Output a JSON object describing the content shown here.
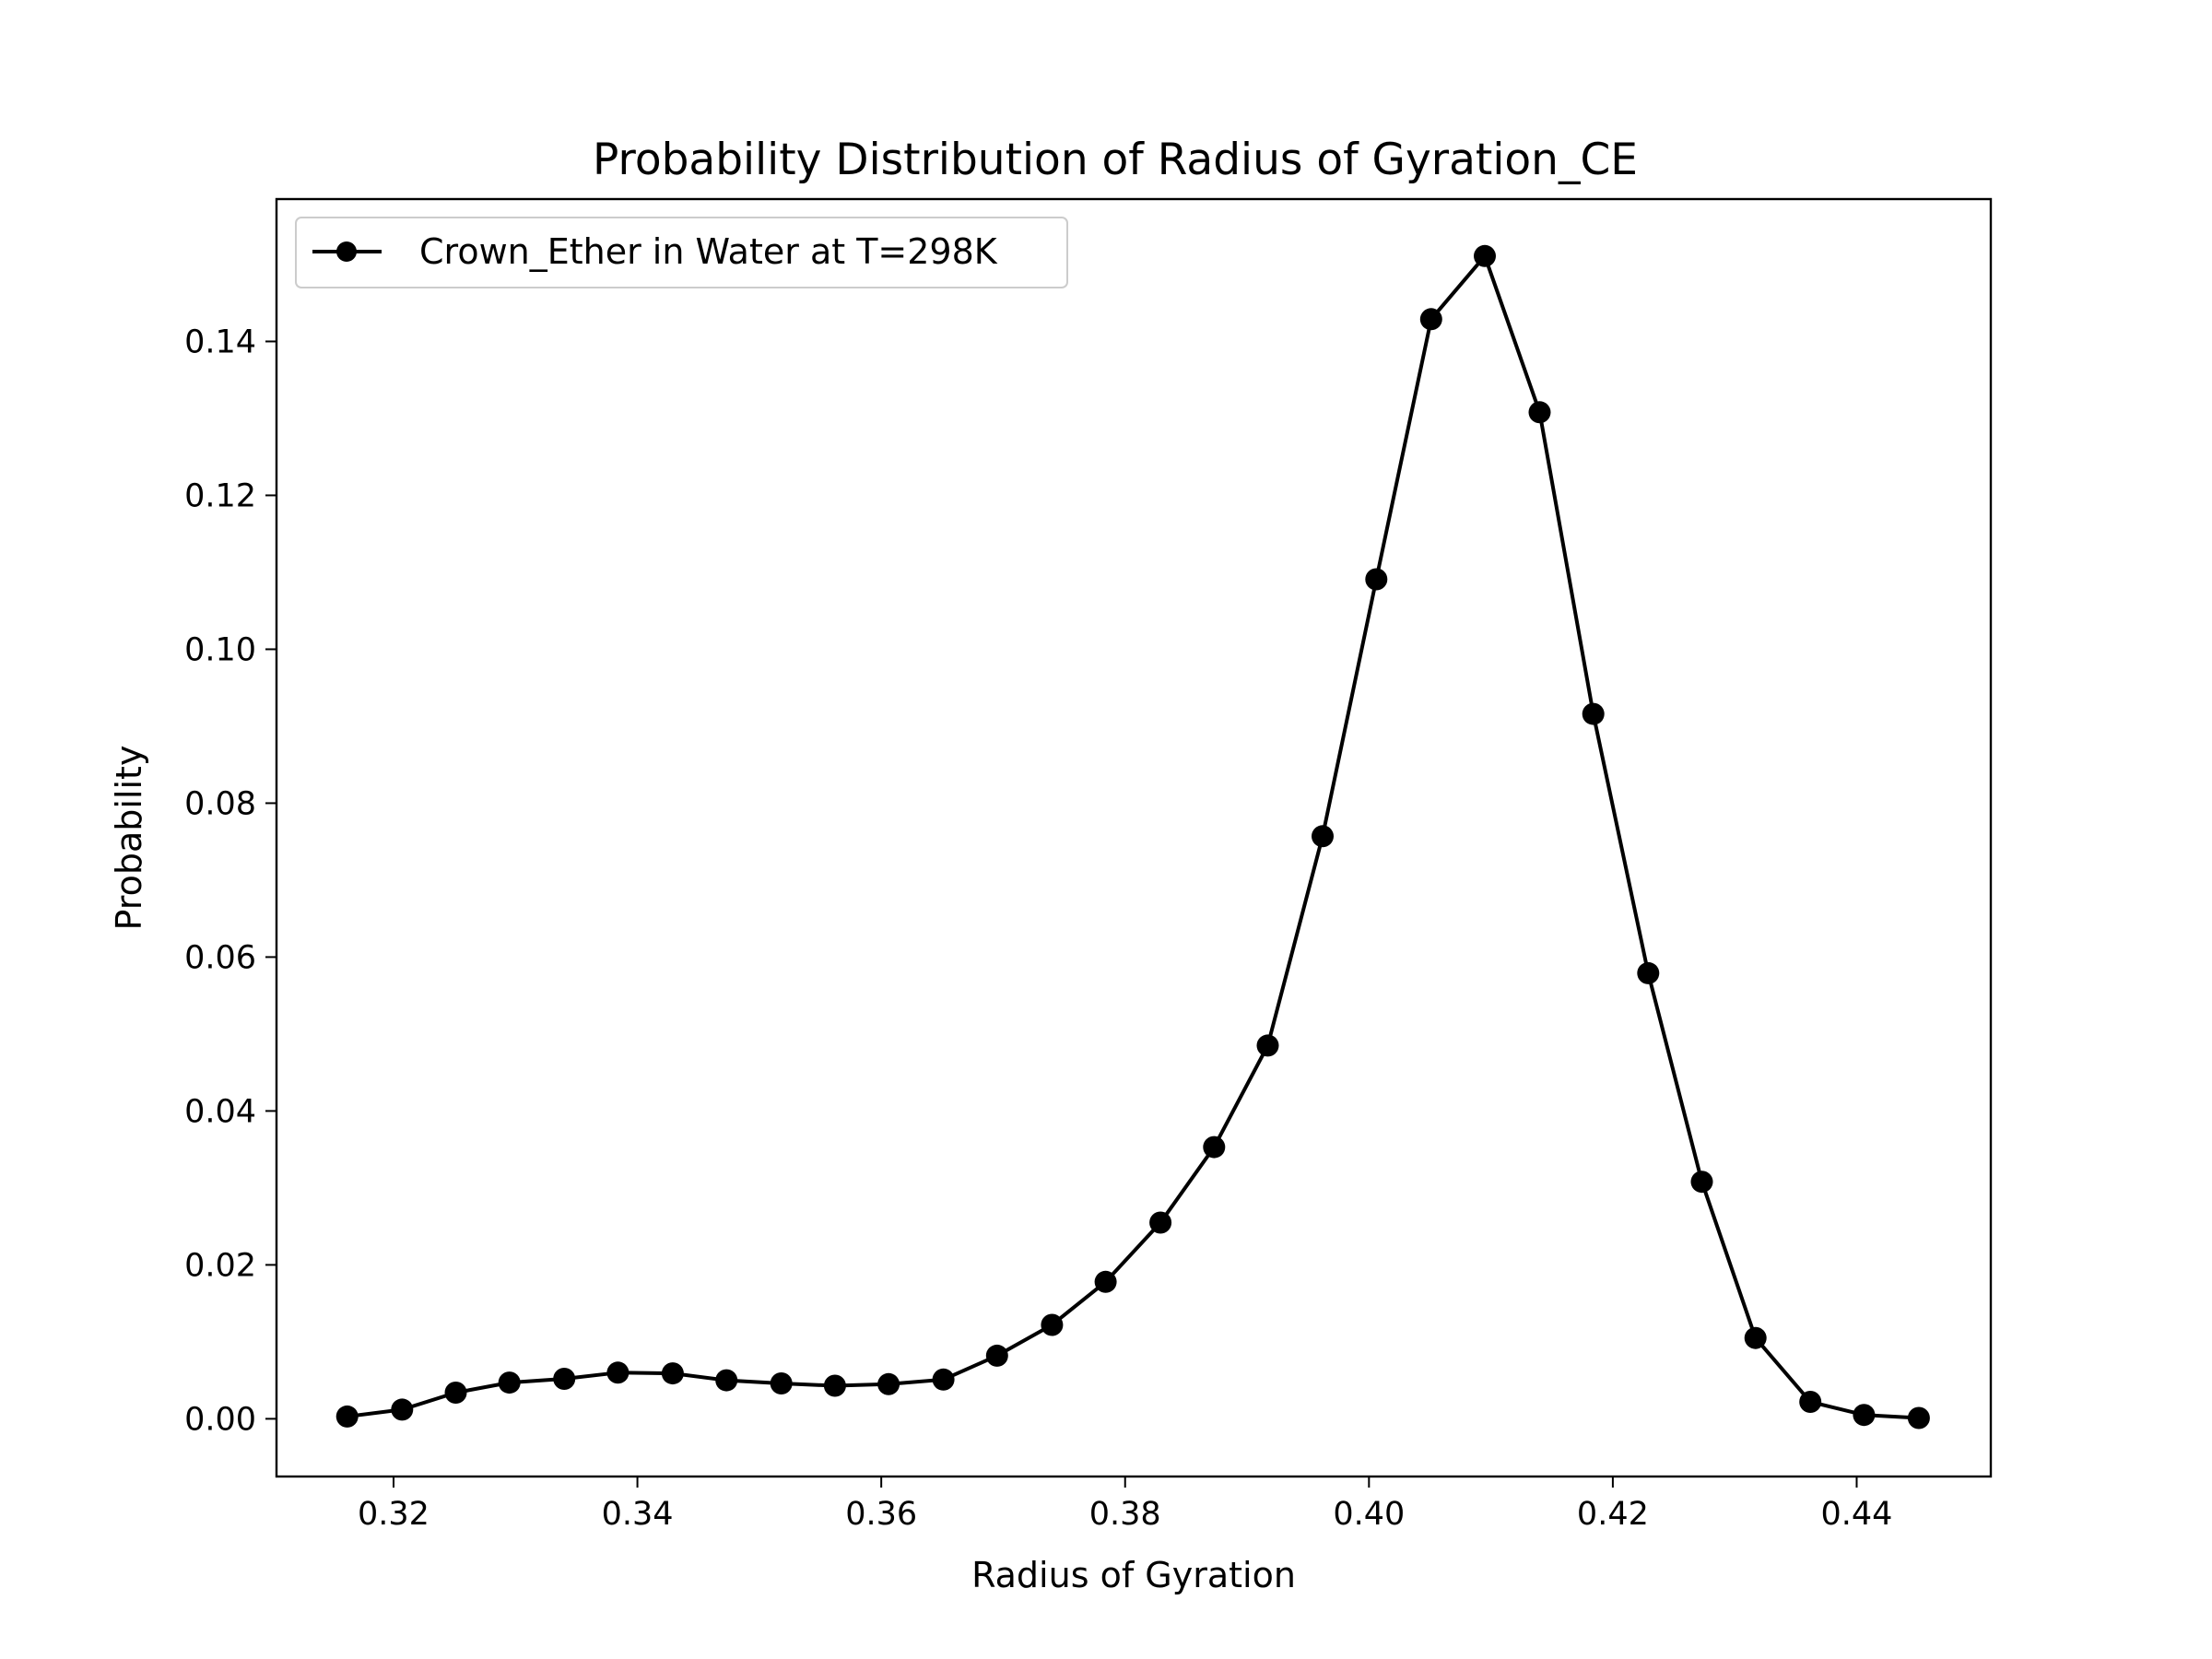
{
  "chart_data": {
    "type": "line",
    "title": "Probability Distribution of Radius of Gyration_CE",
    "xlabel": "Radius of Gyration",
    "ylabel": "Probability",
    "xlim": [
      0.3104,
      0.451
    ],
    "ylim": [
      -0.0075,
      0.1585
    ],
    "xticks": [
      "0.32",
      "0.34",
      "0.36",
      "0.38",
      "0.40",
      "0.42",
      "0.44"
    ],
    "yticks": [
      "0.00",
      "0.02",
      "0.04",
      "0.06",
      "0.08",
      "0.10",
      "0.12",
      "0.14"
    ],
    "grid": false,
    "legend_position": "upper-left",
    "colors": {
      "series": "#000000",
      "axes": "#000000",
      "legend_border": "#cccccc",
      "background": "#ffffff"
    },
    "series": [
      {
        "name": "Crown_Ether in Water at T=298K",
        "marker": "circle",
        "x": [
          0.3162,
          0.3207,
          0.3251,
          0.3295,
          0.334,
          0.3384,
          0.3429,
          0.3473,
          0.3518,
          0.3562,
          0.3606,
          0.3651,
          0.3695,
          0.374,
          0.3784,
          0.3829,
          0.3873,
          0.3917,
          0.3962,
          0.4006,
          0.4051,
          0.4095,
          0.414,
          0.4184,
          0.4229,
          0.4273,
          0.4317,
          0.4362,
          0.4406,
          0.4451
        ],
        "y": [
          0.0003,
          0.0012,
          0.0034,
          0.0047,
          0.0052,
          0.006,
          0.0059,
          0.005,
          0.0046,
          0.0043,
          0.0045,
          0.0051,
          0.0082,
          0.0122,
          0.0178,
          0.0255,
          0.0353,
          0.0485,
          0.0757,
          0.1091,
          0.1429,
          0.1511,
          0.1308,
          0.0916,
          0.0579,
          0.0308,
          0.0105,
          0.0022,
          0.0005,
          0.0001
        ]
      }
    ]
  }
}
